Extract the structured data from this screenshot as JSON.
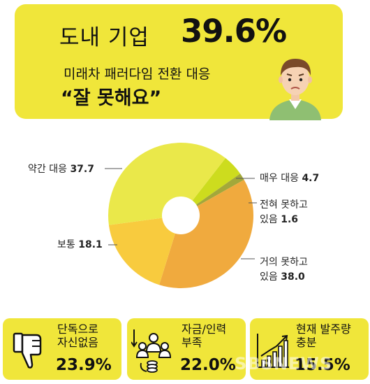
{
  "header": {
    "subject": "도내 기업",
    "value": "39.6%",
    "subtitle": "미래차 패러다임 전환 대응",
    "quote": "“잘 못해요”"
  },
  "chart_data": {
    "type": "pie",
    "donut": true,
    "title": "",
    "slices": [
      {
        "label": "매우 대응",
        "value": 4.7,
        "color": "#cddc1e"
      },
      {
        "label": "전혀 못하고 있음",
        "value": 1.6,
        "color": "#a3a83a"
      },
      {
        "label": "거의 못하고 있음",
        "value": 38.0,
        "color": "#f0aa3e"
      },
      {
        "label": "보통",
        "value": 18.1,
        "color": "#f8cb3e"
      },
      {
        "label": "약간 대응",
        "value": 37.7,
        "color": "#eae84a"
      }
    ]
  },
  "labels": {
    "maeu": {
      "text": "매우 대응",
      "value": "4.7"
    },
    "jeonhyeo": {
      "line1": "전혀 못하고",
      "line2": "있음",
      "value": "1.6"
    },
    "geoui": {
      "line1": "거의 못하고",
      "line2": "있음",
      "value": "38.0"
    },
    "botong": {
      "text": "보통",
      "value": "18.1"
    },
    "yakgan": {
      "text": "약간 대응",
      "value": "37.7"
    }
  },
  "reasons": [
    {
      "label": "단독으로\n자신없음",
      "value": "23.9%",
      "icon": "thumbs-down-icon"
    },
    {
      "label": "자금/인력\n부족",
      "value": "22.0%",
      "icon": "people-money-icon"
    },
    {
      "label": "현재 발주량\n충분",
      "value": "15.5%",
      "icon": "bar-growth-icon"
    }
  ],
  "watermark": "SBSNEWS"
}
